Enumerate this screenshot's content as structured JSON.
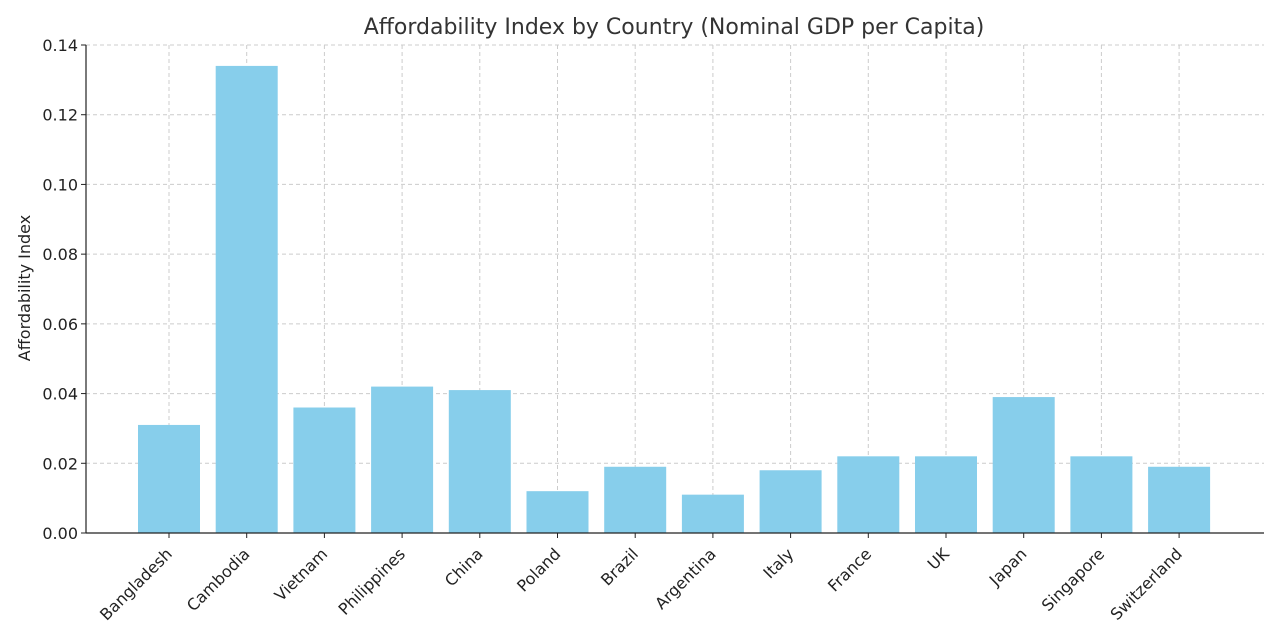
{
  "chart_data": {
    "type": "bar",
    "title": "Affordability Index by Country (Nominal GDP per Capita)",
    "xlabel": "",
    "ylabel": "Affordability Index",
    "categories": [
      "Bangladesh",
      "Cambodia",
      "Vietnam",
      "Philippines",
      "China",
      "Poland",
      "Brazil",
      "Argentina",
      "Italy",
      "France",
      "UK",
      "Japan",
      "Singapore",
      "Switzerland"
    ],
    "values": [
      0.031,
      0.134,
      0.036,
      0.042,
      0.041,
      0.012,
      0.019,
      0.011,
      0.018,
      0.022,
      0.022,
      0.039,
      0.022,
      0.019
    ],
    "ylim": [
      0,
      0.14
    ],
    "yticks": [
      "0.00",
      "0.02",
      "0.04",
      "0.06",
      "0.08",
      "0.10",
      "0.12",
      "0.14"
    ],
    "grid": true,
    "bar_color": "#87CEEB"
  }
}
